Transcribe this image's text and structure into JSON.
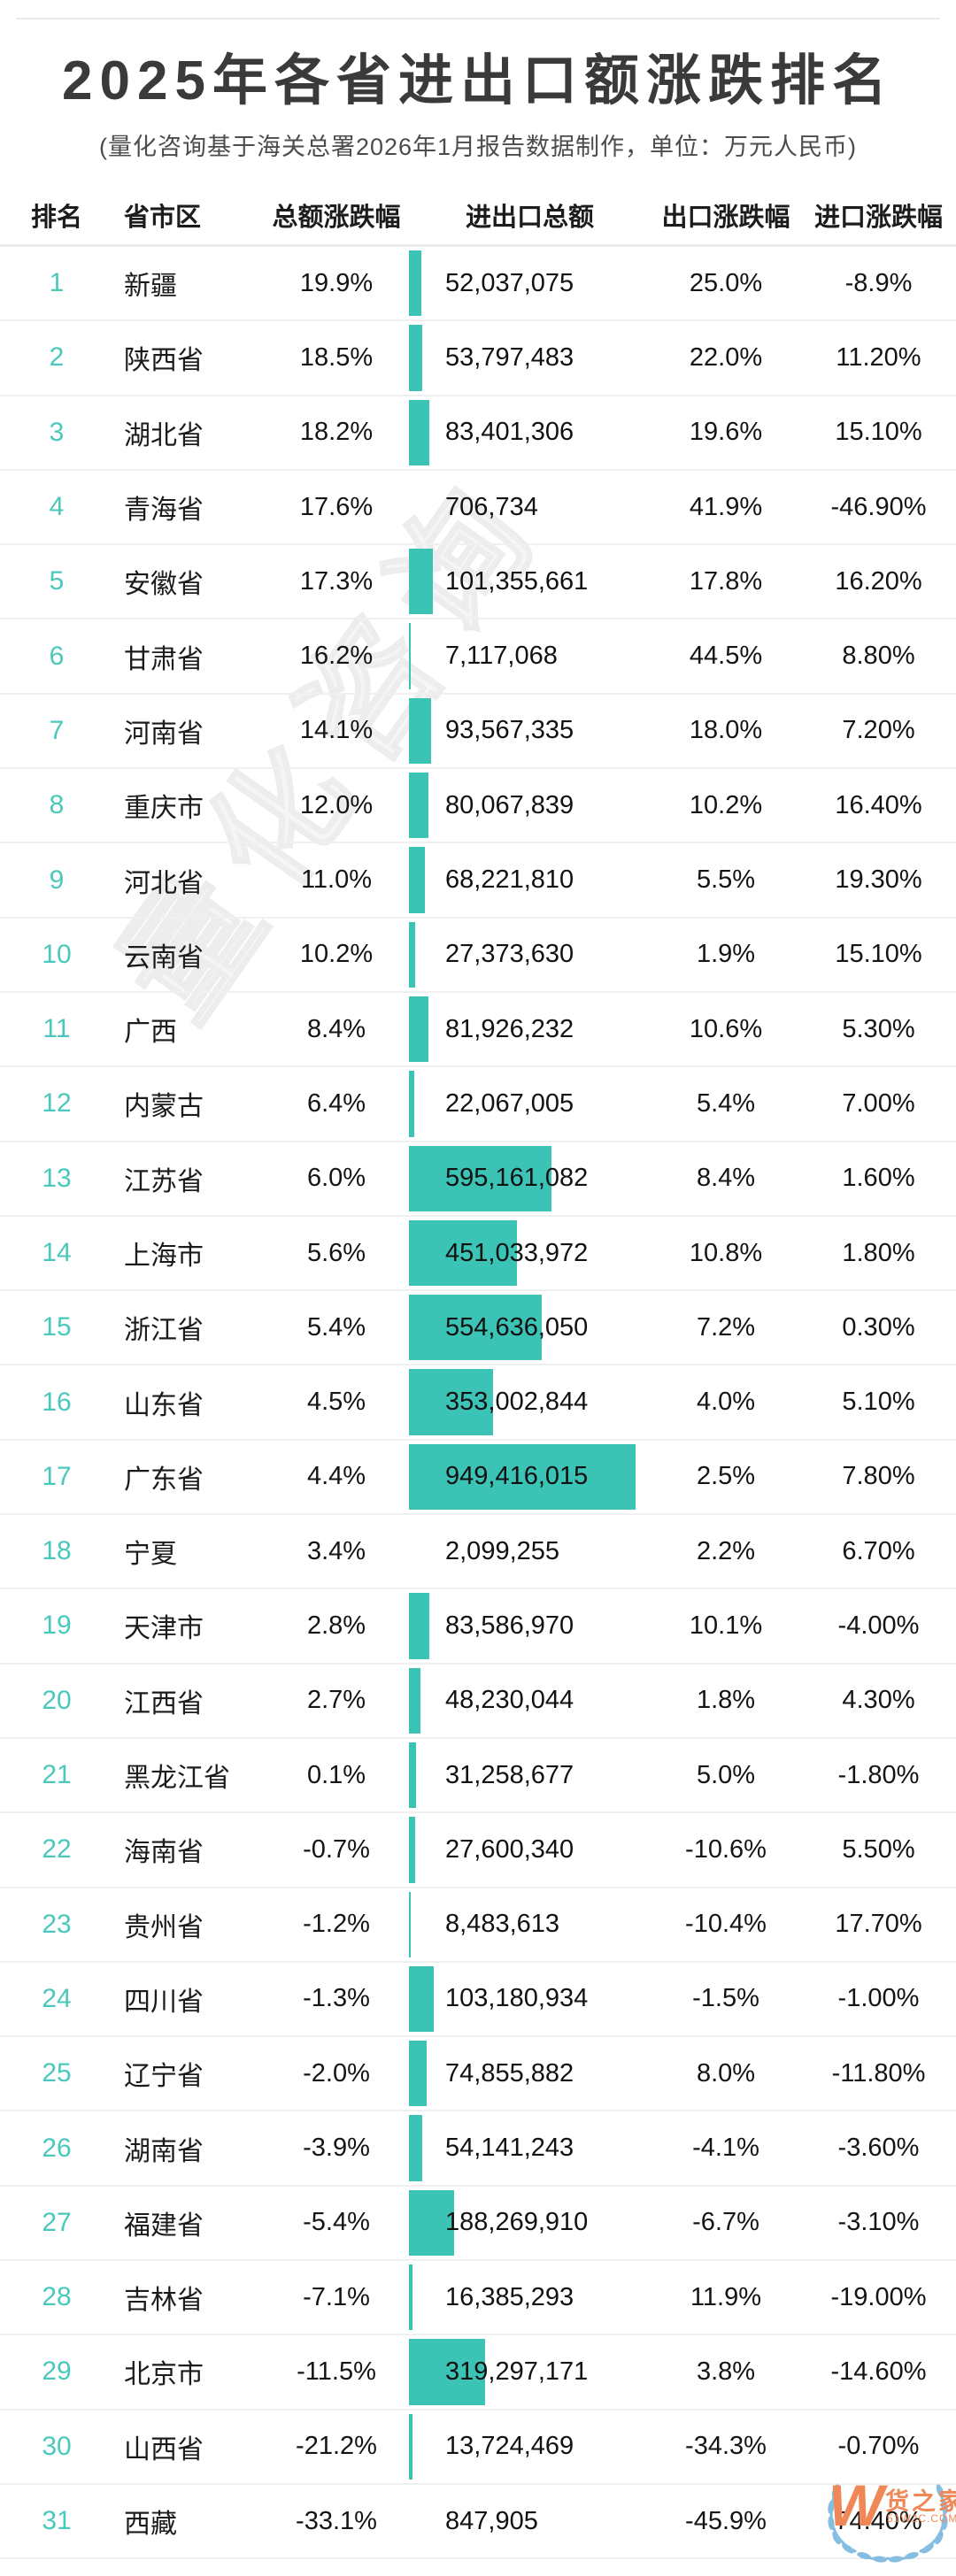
{
  "title": "2025年各省进出口额涨跌排名",
  "subtitle": "(量化咨询基于海关总署2026年1月报告数据制作，单位：万元人民币)",
  "watermark": "量化咨询",
  "colors": {
    "accent_teal": "#3bc3b6",
    "rank_teal": "#4ac8bb",
    "logo_orange": "#ef8757",
    "wreath_blue": "#85bee0",
    "divider_gray": "#ececec"
  },
  "columns": [
    "排名",
    "省市区",
    "总额涨跌幅",
    "进出口总额",
    "出口涨跌幅",
    "进口涨跌幅"
  ],
  "logo": {
    "mark": "W",
    "name": "货之家",
    "site": "51W2C.COM"
  },
  "chart_data": {
    "type": "table",
    "title": "2025年各省进出口额涨跌排名",
    "subtitle": "(量化咨询基于海关总署2026年1月报告数据制作，单位：万元人民币)",
    "bar_column": "进出口总额",
    "bar_max_value": 949416015,
    "columns": [
      "排名",
      "省市区",
      "总额涨跌幅",
      "进出口总额",
      "出口涨跌幅",
      "进口涨跌幅"
    ],
    "rows": [
      {
        "rank": "1",
        "province": "新疆",
        "total_change": "19.9%",
        "amount": "52,037,075",
        "export_change": "25.0%",
        "import_change": "-8.9%"
      },
      {
        "rank": "2",
        "province": "陕西省",
        "total_change": "18.5%",
        "amount": "53,797,483",
        "export_change": "22.0%",
        "import_change": "11.20%"
      },
      {
        "rank": "3",
        "province": "湖北省",
        "total_change": "18.2%",
        "amount": "83,401,306",
        "export_change": "19.6%",
        "import_change": "15.10%"
      },
      {
        "rank": "4",
        "province": "青海省",
        "total_change": "17.6%",
        "amount": "706,734",
        "export_change": "41.9%",
        "import_change": "-46.90%"
      },
      {
        "rank": "5",
        "province": "安徽省",
        "total_change": "17.3%",
        "amount": "101,355,661",
        "export_change": "17.8%",
        "import_change": "16.20%"
      },
      {
        "rank": "6",
        "province": "甘肃省",
        "total_change": "16.2%",
        "amount": "7,117,068",
        "export_change": "44.5%",
        "import_change": "8.80%"
      },
      {
        "rank": "7",
        "province": "河南省",
        "total_change": "14.1%",
        "amount": "93,567,335",
        "export_change": "18.0%",
        "import_change": "7.20%"
      },
      {
        "rank": "8",
        "province": "重庆市",
        "total_change": "12.0%",
        "amount": "80,067,839",
        "export_change": "10.2%",
        "import_change": "16.40%"
      },
      {
        "rank": "9",
        "province": "河北省",
        "total_change": "11.0%",
        "amount": "68,221,810",
        "export_change": "5.5%",
        "import_change": "19.30%"
      },
      {
        "rank": "10",
        "province": "云南省",
        "total_change": "10.2%",
        "amount": "27,373,630",
        "export_change": "1.9%",
        "import_change": "15.10%"
      },
      {
        "rank": "11",
        "province": "广西",
        "total_change": "8.4%",
        "amount": "81,926,232",
        "export_change": "10.6%",
        "import_change": "5.30%"
      },
      {
        "rank": "12",
        "province": "内蒙古",
        "total_change": "6.4%",
        "amount": "22,067,005",
        "export_change": "5.4%",
        "import_change": "7.00%"
      },
      {
        "rank": "13",
        "province": "江苏省",
        "total_change": "6.0%",
        "amount": "595,161,082",
        "export_change": "8.4%",
        "import_change": "1.60%"
      },
      {
        "rank": "14",
        "province": "上海市",
        "total_change": "5.6%",
        "amount": "451,033,972",
        "export_change": "10.8%",
        "import_change": "1.80%"
      },
      {
        "rank": "15",
        "province": "浙江省",
        "total_change": "5.4%",
        "amount": "554,636,050",
        "export_change": "7.2%",
        "import_change": "0.30%"
      },
      {
        "rank": "16",
        "province": "山东省",
        "total_change": "4.5%",
        "amount": "353,002,844",
        "export_change": "4.0%",
        "import_change": "5.10%"
      },
      {
        "rank": "17",
        "province": "广东省",
        "total_change": "4.4%",
        "amount": "949,416,015",
        "export_change": "2.5%",
        "import_change": "7.80%"
      },
      {
        "rank": "18",
        "province": "宁夏",
        "total_change": "3.4%",
        "amount": "2,099,255",
        "export_change": "2.2%",
        "import_change": "6.70%"
      },
      {
        "rank": "19",
        "province": "天津市",
        "total_change": "2.8%",
        "amount": "83,586,970",
        "export_change": "10.1%",
        "import_change": "-4.00%"
      },
      {
        "rank": "20",
        "province": "江西省",
        "total_change": "2.7%",
        "amount": "48,230,044",
        "export_change": "1.8%",
        "import_change": "4.30%"
      },
      {
        "rank": "21",
        "province": "黑龙江省",
        "total_change": "0.1%",
        "amount": "31,258,677",
        "export_change": "5.0%",
        "import_change": "-1.80%"
      },
      {
        "rank": "22",
        "province": "海南省",
        "total_change": "-0.7%",
        "amount": "27,600,340",
        "export_change": "-10.6%",
        "import_change": "5.50%"
      },
      {
        "rank": "23",
        "province": "贵州省",
        "total_change": "-1.2%",
        "amount": "8,483,613",
        "export_change": "-10.4%",
        "import_change": "17.70%"
      },
      {
        "rank": "24",
        "province": "四川省",
        "total_change": "-1.3%",
        "amount": "103,180,934",
        "export_change": "-1.5%",
        "import_change": "-1.00%"
      },
      {
        "rank": "25",
        "province": "辽宁省",
        "total_change": "-2.0%",
        "amount": "74,855,882",
        "export_change": "8.0%",
        "import_change": "-11.80%"
      },
      {
        "rank": "26",
        "province": "湖南省",
        "total_change": "-3.9%",
        "amount": "54,141,243",
        "export_change": "-4.1%",
        "import_change": "-3.60%"
      },
      {
        "rank": "27",
        "province": "福建省",
        "total_change": "-5.4%",
        "amount": "188,269,910",
        "export_change": "-6.7%",
        "import_change": "-3.10%"
      },
      {
        "rank": "28",
        "province": "吉林省",
        "total_change": "-7.1%",
        "amount": "16,385,293",
        "export_change": "11.9%",
        "import_change": "-19.00%"
      },
      {
        "rank": "29",
        "province": "北京市",
        "total_change": "-11.5%",
        "amount": "319,297,171",
        "export_change": "3.8%",
        "import_change": "-14.60%"
      },
      {
        "rank": "30",
        "province": "山西省",
        "total_change": "-21.2%",
        "amount": "13,724,469",
        "export_change": "-34.3%",
        "import_change": "-0.70%"
      },
      {
        "rank": "31",
        "province": "西藏",
        "total_change": "-33.1%",
        "amount": "847,905",
        "export_change": "-45.9%",
        "import_change": "74.40%"
      }
    ]
  }
}
